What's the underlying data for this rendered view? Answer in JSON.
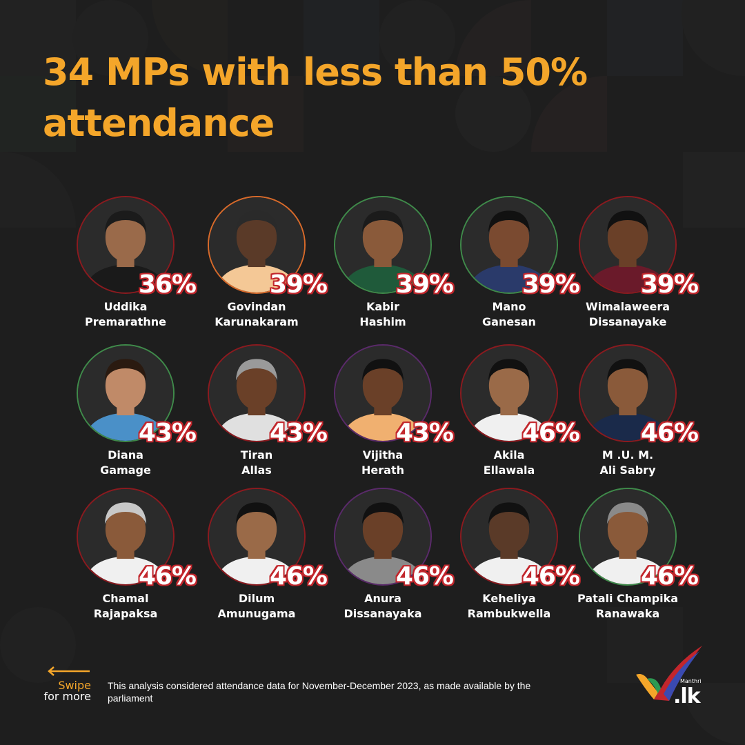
{
  "title": "34 MPs with less than 50% attendance",
  "mps": [
    {
      "first": "Uddika",
      "last": "Premarathne",
      "pct": "36%",
      "ring": "#8b1a1f",
      "skin": "#9a6a4a",
      "shirt": "#1a1a1a",
      "hair": "#1b1b1b"
    },
    {
      "first": "Govindan",
      "last": "Karunakaram",
      "pct": "39%",
      "ring": "#d86a2a",
      "skin": "#5a3a28",
      "shirt": "#f4c896",
      "hair": "#2a2a2a"
    },
    {
      "first": "Kabir",
      "last": "Hashim",
      "pct": "39%",
      "ring": "#3f8a4a",
      "skin": "#8a5a3a",
      "shirt": "#1f5a3a",
      "hair": "#1b1b1b"
    },
    {
      "first": "Mano",
      "last": "Ganesan",
      "pct": "39%",
      "ring": "#3f8a4a",
      "skin": "#7a4a30",
      "shirt": "#2a3a6a",
      "hair": "#111111"
    },
    {
      "first": "Wimalaweera",
      "last": "Dissanayake",
      "pct": "39%",
      "ring": "#8b1a1f",
      "skin": "#6a4028",
      "shirt": "#6a1a2a",
      "hair": "#111111"
    },
    {
      "first": "Diana",
      "last": "Gamage",
      "pct": "43%",
      "ring": "#3f8a4a",
      "skin": "#c08a68",
      "shirt": "#4a90c8",
      "hair": "#2a1a10"
    },
    {
      "first": "Tiran",
      "last": "Allas",
      "pct": "43%",
      "ring": "#8b1a1f",
      "skin": "#6a4028",
      "shirt": "#e0e0e0",
      "hair": "#9a9a9a"
    },
    {
      "first": "Vijitha",
      "last": "Herath",
      "pct": "43%",
      "ring": "#5a2a6a",
      "skin": "#6a4028",
      "shirt": "#f0b070",
      "hair": "#111111"
    },
    {
      "first": "Akila",
      "last": "Ellawala",
      "pct": "46%",
      "ring": "#8b1a1f",
      "skin": "#9a6a48",
      "shirt": "#f0f0f0",
      "hair": "#111111"
    },
    {
      "first": "M .U. M.",
      "last": "Ali Sabry",
      "pct": "46%",
      "ring": "#8b1a1f",
      "skin": "#8a5a3a",
      "shirt": "#1a2a4a",
      "hair": "#111111"
    },
    {
      "first": "Chamal",
      "last": "Rajapaksa",
      "pct": "46%",
      "ring": "#8b1a1f",
      "skin": "#8a5a3a",
      "shirt": "#f0f0f0",
      "hair": "#c8c8c8"
    },
    {
      "first": "Dilum",
      "last": "Amunugama",
      "pct": "46%",
      "ring": "#8b1a1f",
      "skin": "#9a6a48",
      "shirt": "#f0f0f0",
      "hair": "#111111"
    },
    {
      "first": "Anura",
      "last": "Dissanayaka",
      "pct": "46%",
      "ring": "#5a2a6a",
      "skin": "#6a4028",
      "shirt": "#8a8a8a",
      "hair": "#111111"
    },
    {
      "first": "Keheliya",
      "last": "Rambukwella",
      "pct": "46%",
      "ring": "#8b1a1f",
      "skin": "#5a3a28",
      "shirt": "#f0f0f0",
      "hair": "#111111"
    },
    {
      "first": "Patali Champika",
      "last": "Ranawaka",
      "pct": "46%",
      "ring": "#3f8a4a",
      "skin": "#8a5a3a",
      "shirt": "#f0f0f0",
      "hair": "#8a8a8a"
    }
  ],
  "swipe": {
    "line1": "Swipe",
    "line2": "for more",
    "icon": "arrow-left-icon"
  },
  "note": "This analysis considered attendance data for November-December 2023, as made available by the parliament",
  "logo": {
    "word": "Manthri",
    "tld": ".lk"
  },
  "colors": {
    "accent": "#f4a62a",
    "badge_outline": "#c2262c",
    "background": "#1e1e1e"
  }
}
